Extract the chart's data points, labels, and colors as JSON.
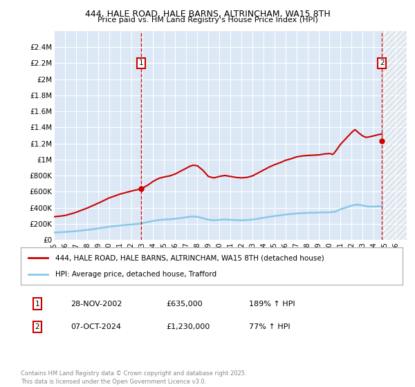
{
  "title_line1": "444, HALE ROAD, HALE BARNS, ALTRINCHAM, WA15 8TH",
  "title_line2": "Price paid vs. HM Land Registry's House Price Index (HPI)",
  "ylim": [
    0,
    2600000
  ],
  "xlim_start": 1995,
  "xlim_end": 2027,
  "yticks": [
    0,
    200000,
    400000,
    600000,
    800000,
    1000000,
    1200000,
    1400000,
    1600000,
    1800000,
    2000000,
    2200000,
    2400000
  ],
  "ytick_labels": [
    "£0",
    "£200K",
    "£400K",
    "£600K",
    "£800K",
    "£1M",
    "£1.2M",
    "£1.4M",
    "£1.6M",
    "£1.8M",
    "£2M",
    "£2.2M",
    "£2.4M"
  ],
  "background_color": "#dce8f5",
  "grid_color": "#ffffff",
  "red_line_color": "#cc0000",
  "blue_line_color": "#88c8e8",
  "sale1_vline_x": 2002.9,
  "sale2_vline_x": 2024.75,
  "sale1_price": 635000,
  "sale2_price": 1230000,
  "sale1_date": "28-NOV-2002",
  "sale2_date": "07-OCT-2024",
  "sale1_hpi_pct": "189% ↑ HPI",
  "sale2_hpi_pct": "77% ↑ HPI",
  "legend_red_label": "444, HALE ROAD, HALE BARNS, ALTRINCHAM, WA15 8TH (detached house)",
  "legend_blue_label": "HPI: Average price, detached house, Trafford",
  "footer_text": "Contains HM Land Registry data © Crown copyright and database right 2025.\nThis data is licensed under the Open Government Licence v3.0.",
  "hpi_breakpoints_x": [
    1995.0,
    1995.5,
    1996.0,
    1996.5,
    1997.0,
    1997.5,
    1998.0,
    1998.5,
    1999.0,
    1999.5,
    2000.0,
    2000.5,
    2001.0,
    2001.5,
    2002.0,
    2002.5,
    2002.9,
    2003.0,
    2003.5,
    2004.0,
    2004.5,
    2005.0,
    2005.5,
    2006.0,
    2006.5,
    2007.0,
    2007.3,
    2007.6,
    2008.0,
    2008.5,
    2009.0,
    2009.5,
    2010.0,
    2010.5,
    2011.0,
    2011.5,
    2012.0,
    2012.5,
    2013.0,
    2013.5,
    2014.0,
    2014.5,
    2015.0,
    2015.5,
    2016.0,
    2016.5,
    2017.0,
    2017.5,
    2018.0,
    2018.5,
    2019.0,
    2019.5,
    2020.0,
    2020.3,
    2020.5,
    2021.0,
    2021.5,
    2022.0,
    2022.3,
    2022.6,
    2023.0,
    2023.3,
    2023.6,
    2024.0,
    2024.3,
    2024.75
  ],
  "hpi_breakpoints_y": [
    47.5,
    48.5,
    50.0,
    53.0,
    56.5,
    61.0,
    65.0,
    70.0,
    75.0,
    80.5,
    86.0,
    90.0,
    94.0,
    97.0,
    100.0,
    102.5,
    104.5,
    105.5,
    112.0,
    120.0,
    126.0,
    129.0,
    131.0,
    135.0,
    141.0,
    147.0,
    150.5,
    153.0,
    152.0,
    143.0,
    130.0,
    127.0,
    130.0,
    132.0,
    130.0,
    128.0,
    127.0,
    128.0,
    131.0,
    137.0,
    143.0,
    149.0,
    154.0,
    158.0,
    163.0,
    166.0,
    170.0,
    172.0,
    173.0,
    173.5,
    174.0,
    176.0,
    177.0,
    175.0,
    180.0,
    196.0,
    208.0,
    220.0,
    226.0,
    220.0,
    213.0,
    210.0,
    211.0,
    213.0,
    215.0,
    217.0
  ],
  "trafford_breakpoints_x": [
    1995.0,
    1995.5,
    1996.0,
    1996.5,
    1997.0,
    1997.5,
    1998.0,
    1998.5,
    1999.0,
    1999.5,
    2000.0,
    2000.5,
    2001.0,
    2001.5,
    2002.0,
    2002.5,
    2003.0,
    2003.5,
    2004.0,
    2004.5,
    2005.0,
    2005.5,
    2006.0,
    2006.5,
    2007.0,
    2007.5,
    2008.0,
    2008.5,
    2009.0,
    2009.5,
    2010.0,
    2010.5,
    2011.0,
    2011.5,
    2012.0,
    2012.5,
    2013.0,
    2013.5,
    2014.0,
    2014.5,
    2015.0,
    2015.5,
    2016.0,
    2016.5,
    2017.0,
    2017.5,
    2018.0,
    2018.5,
    2019.0,
    2019.5,
    2020.0,
    2020.5,
    2021.0,
    2021.5,
    2022.0,
    2022.5,
    2023.0,
    2023.5,
    2024.0,
    2024.75
  ],
  "trafford_breakpoints_y": [
    92000,
    95000,
    99000,
    104000,
    110000,
    117000,
    124000,
    133000,
    143000,
    154000,
    165000,
    173000,
    181000,
    186000,
    192000,
    198000,
    208000,
    222000,
    237000,
    248000,
    254000,
    257000,
    263000,
    273000,
    284000,
    292000,
    288000,
    271000,
    252000,
    244000,
    251000,
    254000,
    250000,
    247000,
    244000,
    247000,
    253000,
    263000,
    276000,
    287000,
    298000,
    306000,
    316000,
    322000,
    330000,
    334000,
    338000,
    338000,
    340000,
    343000,
    344000,
    350000,
    382000,
    403000,
    428000,
    440000,
    430000,
    415000,
    415000,
    420000
  ]
}
